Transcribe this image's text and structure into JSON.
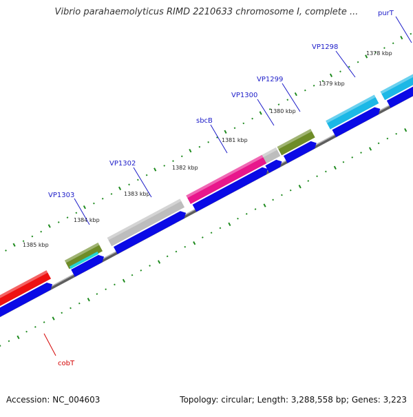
{
  "title": "Vibrio parahaemolyticus RIMD 2210633 chromosome I, complete ...",
  "footer": {
    "accession_label": "Accession:",
    "accession": "NC_004603",
    "topology_label": "Topology:",
    "topology": "circular",
    "length_label": "Length:",
    "length": "3,288,558 bp",
    "genes_label": "Genes:",
    "genes": "3,223"
  },
  "ticks": [
    "1378 kbp",
    "1379 kbp",
    "1380 kbp",
    "1381 kbp",
    "1382 kbp",
    "1383 kbp",
    "1384 kbp",
    "1385 kbp"
  ],
  "genes": [
    {
      "label": "purT",
      "color": "#1cb8e6",
      "named": true
    },
    {
      "label": "VP1298",
      "color": "#1cb8e6",
      "named": true
    },
    {
      "label": "VP1299",
      "color": "#6e8c28",
      "named": true
    },
    {
      "label": "VP1300",
      "color": "#bdbdbd",
      "named": true
    },
    {
      "label": "sbcB",
      "color": "#e8178c",
      "named": true
    },
    {
      "label": "VP1302",
      "color": "#bdbdbd",
      "named": true
    },
    {
      "label": "VP1303",
      "color": "#6e8c28",
      "named": true
    },
    {
      "label": "cobT",
      "color": "#ee1111",
      "named": true
    }
  ],
  "colors": {
    "label_blue": "#1a1ac8",
    "label_red": "#d40000",
    "cds_track": "#0a0ae6",
    "backbone": "#8a8a8a",
    "tick_green": "#1d8a1d"
  }
}
